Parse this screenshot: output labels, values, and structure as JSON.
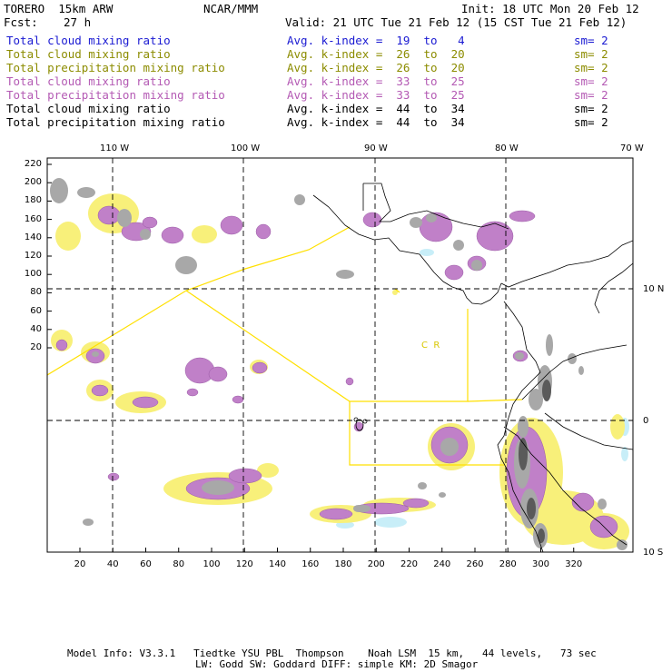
{
  "header": {
    "model": "TORERO  15km ARW",
    "center": "NCAR/MMM",
    "init": "Init: 18 UTC Mon 20 Feb 12",
    "fcst_label": "Fcst:",
    "fcst_value": "27 h",
    "valid": "Valid: 21 UTC Tue 21 Feb 12 (15 CST Tue 21 Feb 12)"
  },
  "legend": [
    {
      "field": "Total cloud mixing ratio",
      "kidx": "Avg. k-index =  19  to   4",
      "sm": "sm= 2",
      "color": "#1a1ad2"
    },
    {
      "field": "Total cloud mixing ratio",
      "kidx": "Avg. k-index =  26  to  20",
      "sm": "sm= 2",
      "color": "#8c8c00"
    },
    {
      "field": "Total precipitation mixing ratio",
      "kidx": "Avg. k-index =  26  to  20",
      "sm": "sm= 2",
      "color": "#8c8c00"
    },
    {
      "field": "Total cloud mixing ratio",
      "kidx": "Avg. k-index =  33  to  25",
      "sm": "sm= 2",
      "color": "#b45ab4"
    },
    {
      "field": "Total precipitation mixing ratio",
      "kidx": "Avg. k-index =  33  to  25",
      "sm": "sm= 2",
      "color": "#b45ab4"
    },
    {
      "field": "Total cloud mixing ratio",
      "kidx": "Avg. k-index =  44  to  34",
      "sm": "sm= 2",
      "color": "#000000"
    },
    {
      "field": "Total precipitation mixing ratio",
      "kidx": "Avg. k-index =  44  to  34",
      "sm": "sm= 2",
      "color": "#000000"
    }
  ],
  "map": {
    "lon_labels": [
      "110 W",
      "100 W",
      "90 W",
      "80 W",
      "70 W"
    ],
    "lat_labels": [
      "10 N",
      "0",
      "10 S"
    ],
    "x_ticks": [
      "20",
      "40",
      "60",
      "80",
      "100",
      "120",
      "140",
      "160",
      "180",
      "200",
      "220",
      "240",
      "260",
      "280",
      "300",
      "320"
    ],
    "y_ticks": [
      "220",
      "200",
      "180",
      "160",
      "140",
      "120",
      "100",
      "80",
      "60",
      "40",
      "20"
    ],
    "region_labels": [
      "C  R"
    ]
  },
  "footer": {
    "line1": "Model Info: V3.3.1   Tiedtke YSU PBL  Thompson    Noah LSM  15 km,   44 levels,   73 sec",
    "line2": "LW: Godd SW: Goddard DIFF: simple KM: 2D Smagor"
  }
}
